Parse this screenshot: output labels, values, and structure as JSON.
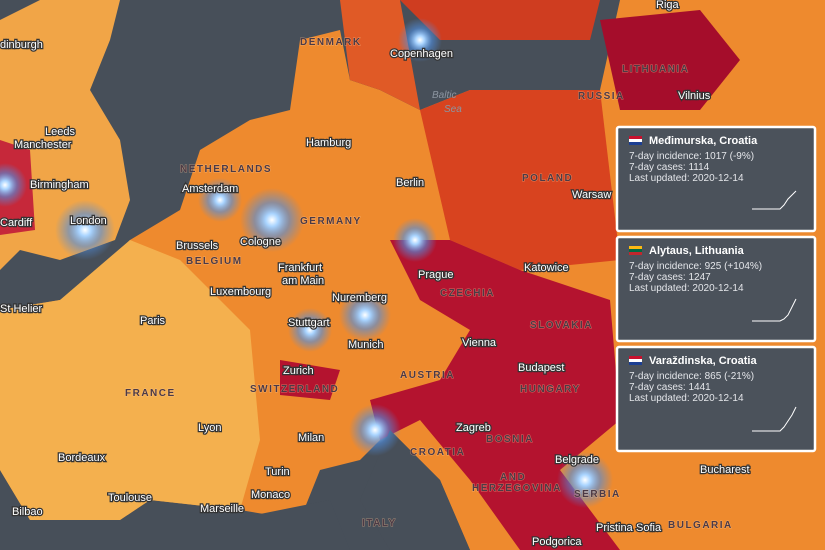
{
  "map": {
    "cities": [
      "dinburgh",
      "Leeds",
      "Manchester",
      "Birmingham",
      "Cardiff",
      "London",
      "St Helier",
      "Copenhagen",
      "Hamburg",
      "Amsterdam",
      "Berlin",
      "Brussels",
      "Cologne",
      "Frankfurt",
      "am Main",
      "Luxembourg",
      "Paris",
      "Stuttgart",
      "Nuremberg",
      "Munich",
      "Prague",
      "Warsaw",
      "Katowice",
      "Vienna",
      "Budapest",
      "Zurich",
      "Milan",
      "Turin",
      "Lyon",
      "Bordeaux",
      "Toulouse",
      "Monaco",
      "Marseille",
      "Bilbao",
      "Zagreb",
      "Belgrade",
      "Bucharest",
      "Sofia",
      "Podgorica",
      "Pristina",
      "Vilnius",
      "Riga"
    ],
    "countries": [
      "DENMARK",
      "NETHERLANDS",
      "GERMANY",
      "BELGIUM",
      "POLAND",
      "CZECHIA",
      "SLOVAKIA",
      "AUSTRIA",
      "HUNGARY",
      "SWITZERLAND",
      "FRANCE",
      "CROATIA",
      "BOSNIA",
      "AND",
      "HERZEGOVINA",
      "SERBIA",
      "ITALY",
      "BULGARIA",
      "LITHUANIA",
      "RUSSIA"
    ],
    "seas": [
      "Baltic",
      "Sea"
    ]
  },
  "cards": [
    {
      "title": "Međimurska, Croatia",
      "lines": [
        "7-day incidence: 1017  (-9%)",
        "7-day cases: 1114",
        "Last updated: 2020-12-14"
      ]
    },
    {
      "title": "Alytaus, Lithuania",
      "lines": [
        "7-day incidence: 925  (+104%)",
        "7-day cases: 1247",
        "Last updated: 2020-12-14"
      ]
    },
    {
      "title": "Varaždinska, Croatia",
      "lines": [
        "7-day incidence: 865  (-21%)",
        "7-day cases: 1441",
        "Last updated: 2020-12-14"
      ]
    }
  ]
}
